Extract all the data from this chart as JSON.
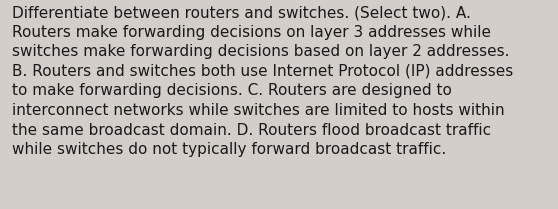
{
  "lines": [
    "Differentiate between routers and switches. (Select two). A.",
    "Routers make forwarding decisions on layer 3 addresses while",
    "switches make forwarding decisions based on layer 2 addresses.",
    "B. Routers and switches both use Internet Protocol (IP) addresses",
    "to make forwarding decisions. C. Routers are designed to",
    "interconnect networks while switches are limited to hosts within",
    "the same broadcast domain. D. Routers flood broadcast traffic",
    "while switches do not typically forward broadcast traffic."
  ],
  "bg_color": "#d3cec9",
  "text_color": "#1a1a1a",
  "font_size": 11.0,
  "font_family": "DejaVu Sans",
  "fig_width": 5.58,
  "fig_height": 2.09,
  "dpi": 100
}
